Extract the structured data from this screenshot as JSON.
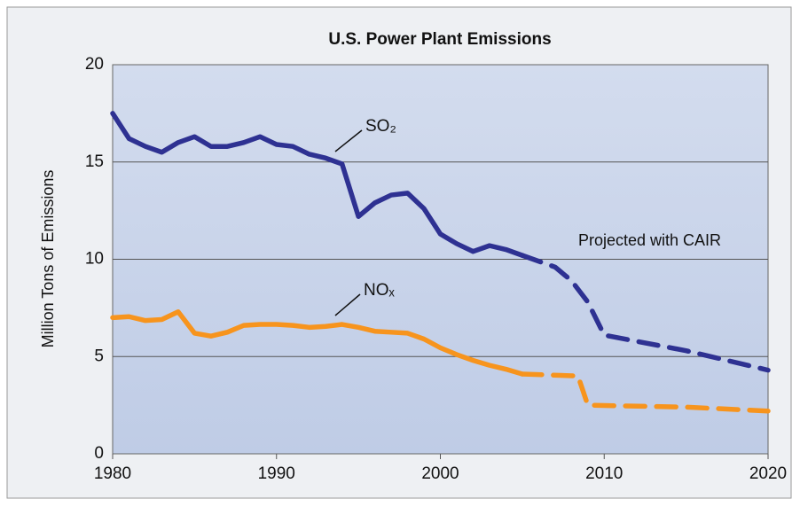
{
  "chart_data": {
    "type": "line",
    "title": "U.S. Power Plant Emissions",
    "y_label": "Million Tons of Emissions",
    "xlim": [
      1980,
      2020
    ],
    "xticks": [
      1980,
      1990,
      2000,
      2010,
      2020
    ],
    "ylim": [
      0,
      20
    ],
    "yticks": [
      0,
      5,
      10,
      15,
      20
    ],
    "grid": true,
    "series": [
      {
        "name": "SO₂",
        "color": "#2e3192",
        "dashed": false,
        "x": [
          1980,
          1981,
          1982,
          1983,
          1984,
          1985,
          1986,
          1987,
          1988,
          1989,
          1990,
          1991,
          1992,
          1993,
          1994,
          1995,
          1996,
          1997,
          1998,
          1999,
          2000,
          2001,
          2002,
          2003,
          2004,
          2005
        ],
        "values": [
          17.5,
          16.2,
          15.8,
          15.5,
          16.0,
          16.3,
          15.8,
          15.8,
          16.0,
          16.3,
          15.9,
          15.8,
          15.4,
          15.2,
          14.9,
          12.2,
          12.9,
          13.3,
          13.4,
          12.6,
          11.3,
          10.8,
          10.4,
          10.7,
          10.5,
          10.2
        ]
      },
      {
        "color": "#2e3192",
        "dashed": true,
        "x": [
          2005,
          2007,
          2008,
          2009,
          2010,
          2015,
          2020
        ],
        "values": [
          10.2,
          9.6,
          8.9,
          7.8,
          6.1,
          5.3,
          4.3
        ]
      },
      {
        "name": "NOₓ",
        "color": "#f7941d",
        "dashed": false,
        "x": [
          1980,
          1981,
          1982,
          1983,
          1984,
          1985,
          1986,
          1987,
          1988,
          1989,
          1990,
          1991,
          1992,
          1993,
          1994,
          1995,
          1996,
          1997,
          1998,
          1999,
          2000,
          2001,
          2002,
          2003,
          2004,
          2005
        ],
        "values": [
          7.0,
          7.05,
          6.85,
          6.9,
          7.3,
          6.2,
          6.05,
          6.25,
          6.6,
          6.65,
          6.65,
          6.6,
          6.5,
          6.55,
          6.65,
          6.5,
          6.3,
          6.25,
          6.2,
          5.9,
          5.45,
          5.1,
          4.8,
          4.55,
          4.35,
          4.1
        ]
      },
      {
        "color": "#f7941d",
        "dashed": true,
        "x": [
          2005,
          2008.4,
          2009,
          2015,
          2020
        ],
        "values": [
          4.1,
          4.0,
          2.5,
          2.4,
          2.2
        ]
      }
    ],
    "annotations": [
      "Projected with CAIR"
    ]
  }
}
